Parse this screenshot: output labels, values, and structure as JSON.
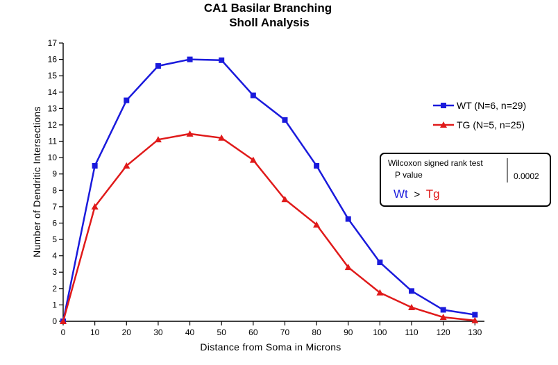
{
  "chart_data": {
    "type": "line",
    "title": [
      "CA1 Basilar Branching",
      "Sholl  Analysis"
    ],
    "xlabel": "Distance from  Soma in  Microns",
    "ylabel": "Number  of  Dendritic  Intersections",
    "x": [
      0,
      10,
      20,
      30,
      40,
      50,
      60,
      70,
      80,
      90,
      100,
      110,
      120,
      130
    ],
    "xlim": [
      0,
      133
    ],
    "ylim": [
      0,
      17
    ],
    "xticks": [
      0,
      10,
      20,
      30,
      40,
      50,
      60,
      70,
      80,
      90,
      100,
      110,
      120,
      130
    ],
    "yticks": [
      0,
      1,
      2,
      3,
      4,
      5,
      6,
      7,
      8,
      9,
      10,
      11,
      12,
      13,
      14,
      15,
      16,
      17
    ],
    "grid": false,
    "legend_position": "right",
    "series": [
      {
        "name": "WT (N=6, n=29)",
        "color": "#1a1adc",
        "marker": "square",
        "values": [
          0,
          9.5,
          13.5,
          15.6,
          16.0,
          15.95,
          13.8,
          12.3,
          9.5,
          6.25,
          3.6,
          1.85,
          0.7,
          0.4
        ]
      },
      {
        "name": "TG (N=5, n=25)",
        "color": "#e01a1a",
        "marker": "triangle",
        "values": [
          0,
          7.0,
          9.5,
          11.1,
          11.45,
          11.2,
          9.85,
          7.45,
          5.9,
          3.3,
          1.75,
          0.85,
          0.25,
          0.05
        ]
      }
    ],
    "annotation": {
      "test_name": "Wilcoxon signed rank test",
      "p_label": "P value",
      "p_value": "0.0002",
      "comparison_left": "Wt",
      "comparison_op": ">",
      "comparison_right": "Tg"
    }
  }
}
